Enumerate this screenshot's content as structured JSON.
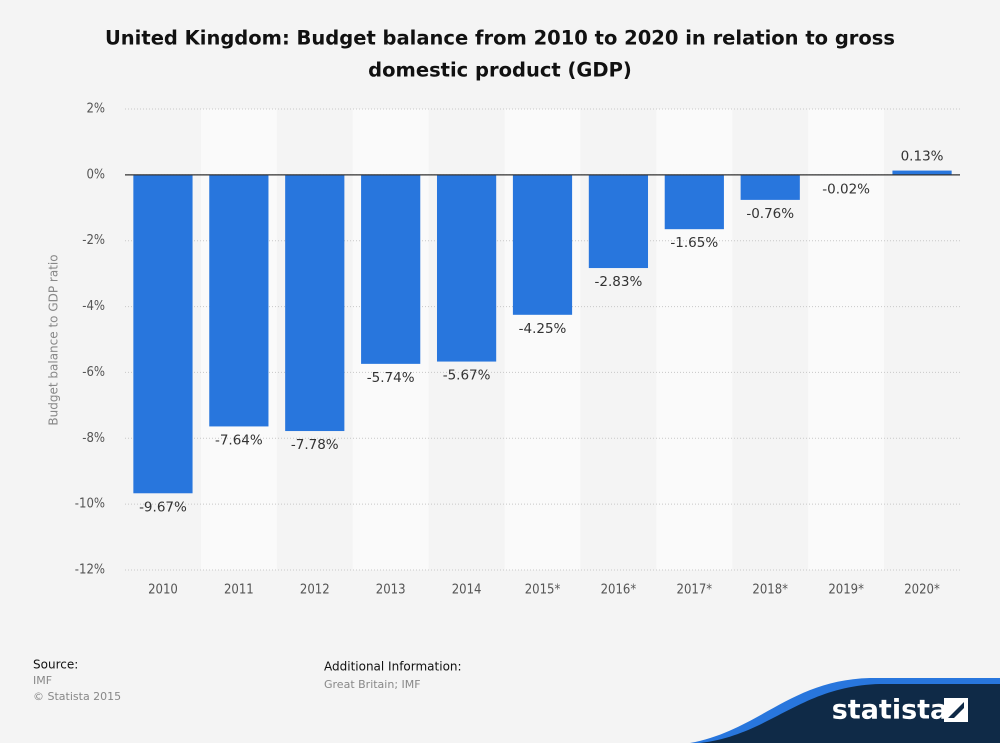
{
  "chart_data": {
    "type": "bar",
    "title": [
      "United Kingdom: Budget balance from 2010 to 2020 in relation to gross",
      "domestic product (GDP)"
    ],
    "y_label": "Budget balance to GDP ratio",
    "categories": [
      "2010",
      "2011",
      "2012",
      "2013",
      "2014",
      "2015*",
      "2016*",
      "2017*",
      "2018*",
      "2019*",
      "2020*"
    ],
    "values": [
      -9.67,
      -7.64,
      -7.78,
      -5.74,
      -5.67,
      -4.25,
      -2.83,
      -1.65,
      -0.76,
      -0.02,
      0.13
    ],
    "value_labels": [
      "-9.67%",
      "-7.64%",
      "-7.78%",
      "-5.74%",
      "-5.67%",
      "-4.25%",
      "-2.83%",
      "-1.65%",
      "-0.76%",
      "-0.02%",
      "0.13%"
    ],
    "color": "#2876dd",
    "ylim": [
      -12,
      2
    ],
    "yticks": [
      {
        "value": 2,
        "label": "2%"
      },
      {
        "value": 0,
        "label": "0%"
      },
      {
        "value": -2,
        "label": "-2%"
      },
      {
        "value": -4,
        "label": "-4%"
      },
      {
        "value": -6,
        "label": "-6%"
      },
      {
        "value": -8,
        "label": "-8%"
      },
      {
        "value": -10,
        "label": "-10%"
      },
      {
        "value": -12,
        "label": "-12%"
      }
    ],
    "grid": true
  },
  "footer": {
    "source_heading": "Source:",
    "source": "IMF",
    "copyright": "© Statista 2015",
    "info_heading": "Additional Information:",
    "info": "Great Britain; IMF"
  },
  "logo": "statista"
}
